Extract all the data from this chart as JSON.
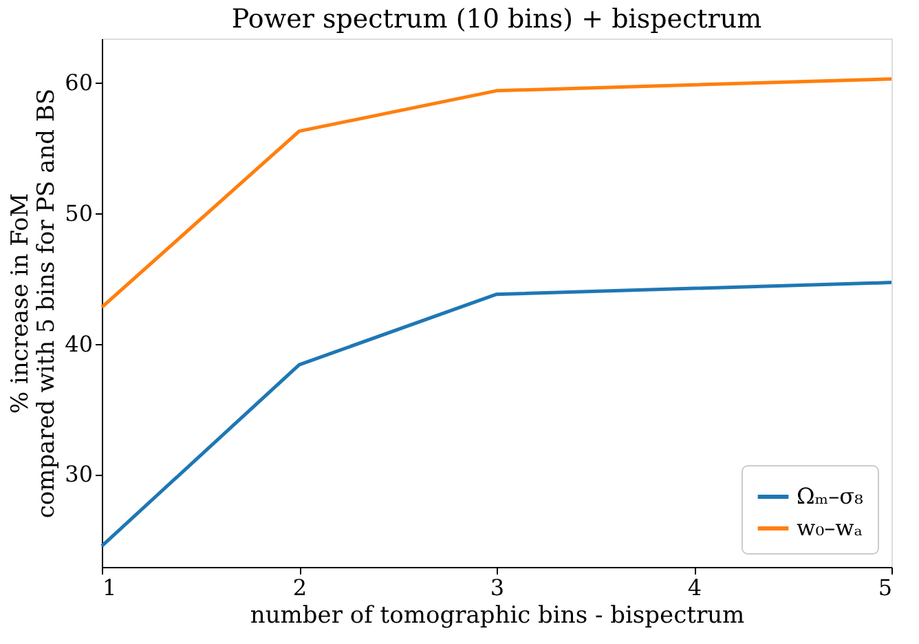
{
  "chart_data": {
    "type": "line",
    "title": "Power spectrum (10 bins) + bispectrum",
    "xlabel": "number of tomographic bins - bispectrum",
    "ylabel": "% increase in FoM\ncompared with 5 bins for PS and BS",
    "x": [
      1,
      2,
      3,
      5
    ],
    "series": [
      {
        "name": "Ωₘ–σ₈",
        "color": "#1f77b4",
        "values": [
          24.5,
          38.4,
          43.8,
          44.7
        ]
      },
      {
        "name": "w₀–wₐ",
        "color": "#ff7f0e",
        "values": [
          42.8,
          56.3,
          59.4,
          60.3
        ]
      }
    ],
    "xlim": [
      1,
      5
    ],
    "xticks": [
      1,
      2,
      3,
      4,
      5
    ],
    "ylim": [
      22.9,
      63.4
    ],
    "yticks": [
      30,
      40,
      50,
      60
    ],
    "grid": false,
    "legend": "bottom right",
    "marker": "none",
    "line_style": "solid"
  }
}
